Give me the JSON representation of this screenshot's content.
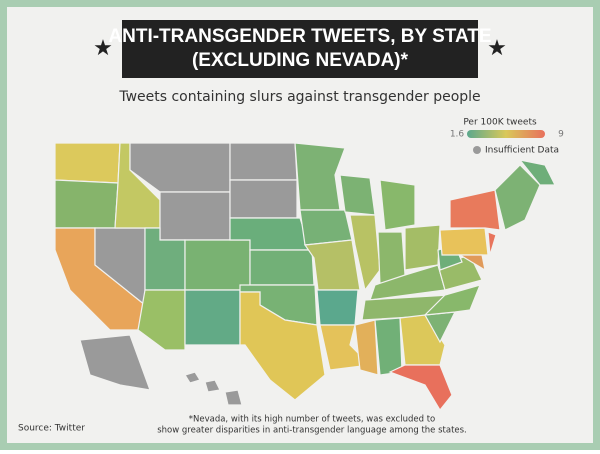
{
  "header": {
    "title_lines": [
      "ANTI-TRANSGENDER TWEETS, BY STATE",
      "(EXCLUDING NEVADA)*"
    ],
    "subtitle": "Tweets containing slurs against transgender people"
  },
  "legend": {
    "title": "Per 100K tweets",
    "min": 1.6,
    "max": 9,
    "insufficient": "Insufficient Data"
  },
  "footnote_lines": [
    "*Nevada, with its high number of tweets, was excluded to",
    "show greater disparities in anti-transgender language among the states."
  ],
  "source": "Source: Twitter"
}
